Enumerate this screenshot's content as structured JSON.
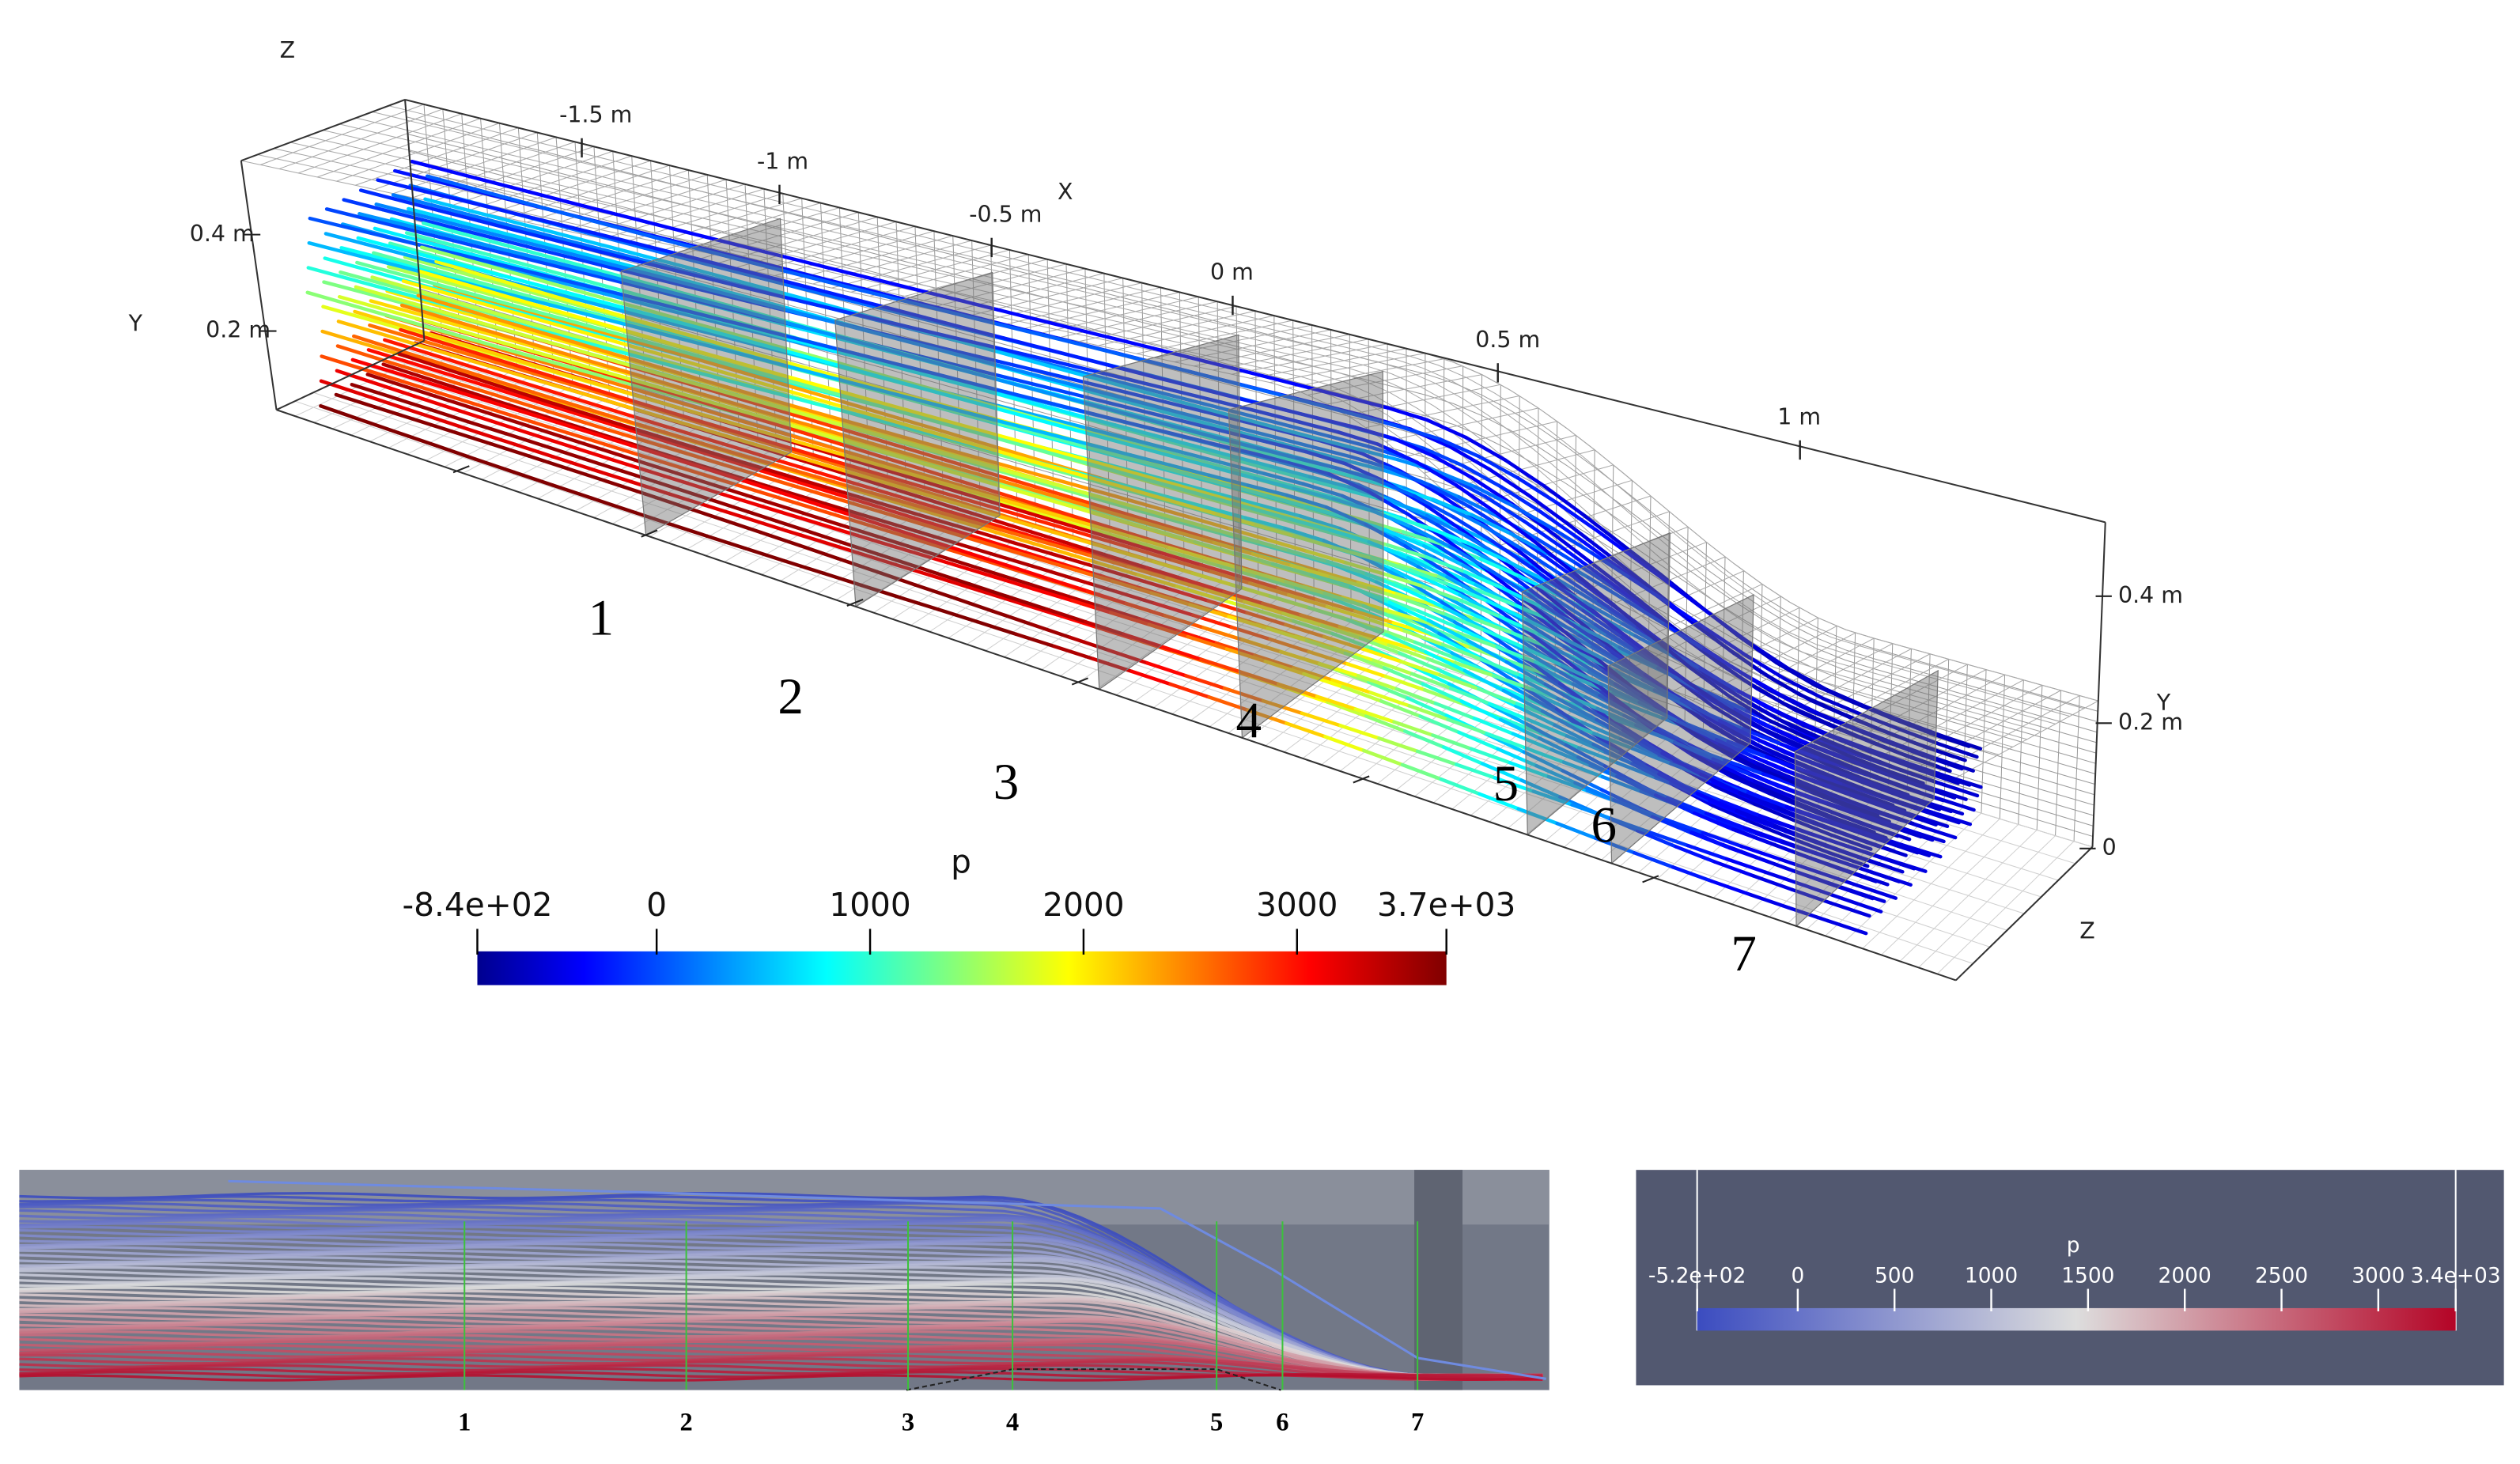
{
  "view3d": {
    "axis_labels": {
      "z_top": "Z",
      "x": "X",
      "y_left": "Y",
      "y_right": "Y",
      "z_right": "Z"
    },
    "x_ticks": [
      "-1.5 m",
      "-1 m",
      "-0.5 m",
      "0 m",
      "0.5 m",
      "1 m"
    ],
    "y_ticks_left": [
      "0.4 m",
      "0.2 m"
    ],
    "y_ticks_right": [
      "0.4 m",
      "0.2 m",
      "0"
    ],
    "sections": [
      "1",
      "2",
      "3",
      "4",
      "5",
      "6",
      "7"
    ],
    "colorbar": {
      "title": "p",
      "ticks": [
        {
          "value": -840,
          "label": "-8.4e+02"
        },
        0,
        1000,
        2000,
        3000,
        {
          "value": 3700,
          "label": "3.7e+03"
        }
      ]
    }
  },
  "side_view": {
    "sections": [
      "1",
      "2",
      "3",
      "4",
      "5",
      "6",
      "7"
    ],
    "colorbar": {
      "title": "p",
      "ticks": [
        {
          "value": -520,
          "label": "-5.2e+02"
        },
        0,
        500,
        1000,
        1500,
        2000,
        2500,
        3000,
        {
          "value": 3400,
          "label": "3.4e+03"
        }
      ]
    }
  }
}
